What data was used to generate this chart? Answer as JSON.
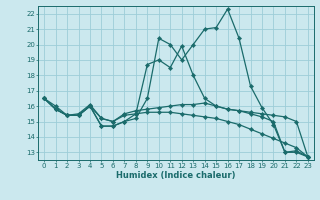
{
  "xlabel": "Humidex (Indice chaleur)",
  "bg_color": "#cbe8ee",
  "line_color": "#1a6b6b",
  "grid_color": "#9dcdd8",
  "xlim": [
    -0.5,
    23.5
  ],
  "ylim": [
    12.5,
    22.5
  ],
  "yticks": [
    13,
    14,
    15,
    16,
    17,
    18,
    19,
    20,
    21,
    22
  ],
  "xticks": [
    0,
    1,
    2,
    3,
    4,
    5,
    6,
    7,
    8,
    9,
    10,
    11,
    12,
    13,
    14,
    15,
    16,
    17,
    18,
    19,
    20,
    21,
    22,
    23
  ],
  "series": [
    [
      16.5,
      15.8,
      15.4,
      15.4,
      16.0,
      14.7,
      14.7,
      15.0,
      15.2,
      16.5,
      20.4,
      20.0,
      19.0,
      20.0,
      21.0,
      21.1,
      22.3,
      20.4,
      17.3,
      15.9,
      14.8,
      13.0,
      13.0,
      12.7
    ],
    [
      16.5,
      15.8,
      15.4,
      15.4,
      16.0,
      14.7,
      14.7,
      15.0,
      15.5,
      18.7,
      19.0,
      18.5,
      19.9,
      18.0,
      16.5,
      16.0,
      15.8,
      15.7,
      15.6,
      15.5,
      15.4,
      15.3,
      15.0,
      12.7
    ],
    [
      16.5,
      15.8,
      15.4,
      15.4,
      16.0,
      15.2,
      15.0,
      15.5,
      15.7,
      15.8,
      15.9,
      16.0,
      16.1,
      16.1,
      16.2,
      16.0,
      15.8,
      15.7,
      15.5,
      15.3,
      15.0,
      13.0,
      13.1,
      12.7
    ],
    [
      16.5,
      16.0,
      15.4,
      15.5,
      16.1,
      15.2,
      15.0,
      15.4,
      15.5,
      15.6,
      15.6,
      15.6,
      15.5,
      15.4,
      15.3,
      15.2,
      15.0,
      14.8,
      14.5,
      14.2,
      13.9,
      13.6,
      13.3,
      12.7
    ]
  ],
  "tick_fontsize": 5.0,
  "xlabel_fontsize": 6.0,
  "marker_size": 2.2,
  "linewidth": 0.9
}
